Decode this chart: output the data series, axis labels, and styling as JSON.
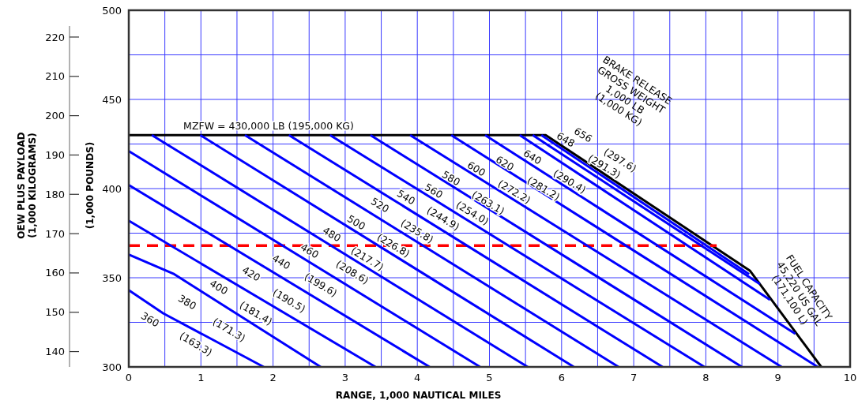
{
  "chart_data": {
    "type": "line",
    "xlabel": "RANGE, 1,000 NAUTICAL MILES",
    "ylabel": "(1,000 POUNDS)",
    "y2label": "OEW PLUS PAYLOAD\n(1,000 KILOGRAMS)",
    "xlim": [
      0,
      10
    ],
    "xticks": [
      0,
      {
        "value": 0.5,
        "label": null
      },
      1,
      {
        "value": 1.5,
        "label": null
      },
      2,
      {
        "value": 2.5,
        "label": null
      },
      3,
      {
        "value": 3.5,
        "label": null
      },
      4,
      {
        "value": 4.5,
        "label": null
      },
      5,
      {
        "value": 5.5,
        "label": null
      },
      6,
      {
        "value": 6.5,
        "label": null
      },
      7,
      {
        "value": 7.5,
        "label": null
      },
      8,
      {
        "value": 8.5,
        "label": null
      },
      9,
      {
        "value": 9.5,
        "label": null
      },
      10
    ],
    "ylim": [
      300,
      500
    ],
    "yticks": [
      300,
      {
        "value": 325,
        "label": null
      },
      350,
      {
        "value": 375,
        "label": null
      },
      400,
      {
        "value": 425,
        "label": null
      },
      450,
      {
        "value": 475,
        "label": null
      },
      500
    ],
    "y2lim": [
      136.1,
      222.8
    ],
    "y2ticks": [
      140,
      150,
      160,
      170,
      180,
      190,
      200,
      210,
      220
    ],
    "grid": true,
    "series": [
      {
        "color": "#000000",
        "x": [
          0,
          5.78,
          8.61,
          9.6
        ],
        "values": [
          430,
          430,
          354,
          300
        ]
      },
      {
        "color": "#ff0000",
        "line_style": "dashed",
        "x": [
          0,
          8.15
        ],
        "values": [
          368,
          368
        ]
      },
      {
        "color": "#0000ff",
        "x": [
          0,
          0.48,
          1.87
        ],
        "values": [
          343,
          330,
          300
        ]
      },
      {
        "color": "#0000ff",
        "x": [
          0,
          0.63,
          2.66
        ],
        "values": [
          363,
          352,
          300
        ]
      },
      {
        "color": "#0000ff",
        "x": [
          0,
          3.42
        ],
        "values": [
          382,
          300
        ]
      },
      {
        "color": "#0000ff",
        "x": [
          0,
          4.17
        ],
        "values": [
          402,
          300
        ]
      },
      {
        "color": "#0000ff",
        "x": [
          0,
          4.87
        ],
        "values": [
          421,
          300
        ]
      },
      {
        "color": "#0000ff",
        "x": [
          0.32,
          5.53
        ],
        "values": [
          430,
          300
        ]
      },
      {
        "color": "#0000ff",
        "x": [
          0.99,
          6.17
        ],
        "values": [
          430,
          300
        ]
      },
      {
        "color": "#0000ff",
        "x": [
          1.61,
          6.79
        ],
        "values": [
          430,
          300
        ]
      },
      {
        "color": "#0000ff",
        "x": [
          2.22,
          7.4
        ],
        "values": [
          430,
          300
        ]
      },
      {
        "color": "#0000ff",
        "x": [
          2.79,
          7.98
        ],
        "values": [
          430,
          300
        ]
      },
      {
        "color": "#0000ff",
        "x": [
          3.35,
          8.5
        ],
        "values": [
          430,
          300
        ]
      },
      {
        "color": "#0000ff",
        "x": [
          3.9,
          9.05
        ],
        "values": [
          430,
          300
        ]
      },
      {
        "color": "#0000ff",
        "x": [
          4.47,
          9.55
        ],
        "values": [
          430,
          300
        ]
      },
      {
        "color": "#0000ff",
        "x": [
          4.94,
          9.24
        ],
        "values": [
          430,
          318.6
        ]
      },
      {
        "color": "#0000ff",
        "x": [
          5.42,
          8.89
        ],
        "values": [
          430,
          337.6
        ]
      },
      {
        "color": "#0000ff",
        "x": [
          5.6,
          8.75
        ],
        "values": [
          430,
          346.5
        ]
      },
      {
        "color": "#0000ff",
        "x": [
          5.72,
          8.6
        ],
        "values": [
          430,
          352
        ]
      }
    ],
    "annotations": [
      "MZFW = 430,000 LB (195,000 KG)",
      "360",
      "(163.3)",
      "380",
      "(171.3)",
      "400",
      "(181.4)",
      "420",
      "(190.5)",
      "440",
      "(199.6)",
      "460",
      "(208.6)",
      "480",
      "(217.7)",
      "500",
      "(226.8)",
      "520",
      "(235.8)",
      "540",
      "(244.9)",
      "560",
      "(254.0)",
      "580",
      "(263.1)",
      "600",
      "(272.2)",
      "620",
      "(281.2)",
      "640",
      "(290.4)",
      "648",
      "(291.3)",
      "656",
      "(297.6)",
      "BRAKE RELEASE\nGROSS WEIGHT\n1,000 LB\n(1,000 KG)",
      "FUEL CAPACITY\n45,220 US GAL\n(171,100 L)"
    ]
  }
}
